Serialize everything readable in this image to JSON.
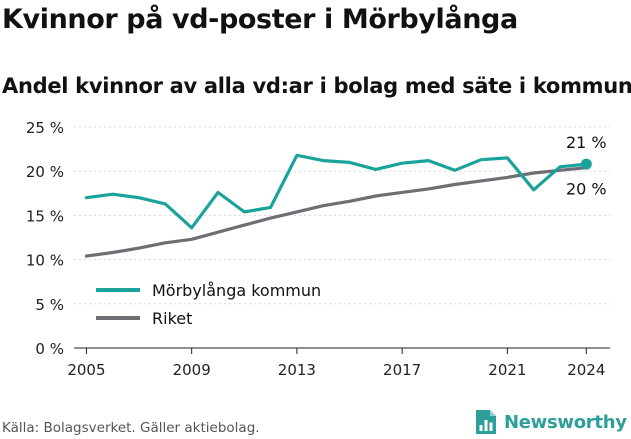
{
  "title": "Kvinnor på vd-poster i Mörbylånga",
  "subtitle": "Andel kvinnor av alla vd:ar i bolag med säte i kommunen",
  "source": "Källa: Bolagsverket. Gäller aktiebolag.",
  "brand": "Newsworthy",
  "colors": {
    "kommun": "#1aa39a",
    "riket": "#6f6e74",
    "grid": "#d7d7d7"
  },
  "icons": {
    "logo": "bar-chart-document-icon"
  },
  "chart_data": {
    "type": "line",
    "xlim": [
      2004.3,
      2024.9
    ],
    "ylim": [
      0,
      25
    ],
    "x_ticks": [
      2005,
      2009,
      2013,
      2017,
      2021,
      2024
    ],
    "y_ticks": [
      0,
      5,
      10,
      15,
      20,
      25
    ],
    "y_tick_labels": [
      "0 %",
      "5 %",
      "10 %",
      "15 %",
      "20 %",
      "25 %"
    ],
    "grid": "horizontal",
    "legend_position": "bottom-left",
    "series": [
      {
        "name": "Mörbylånga kommun",
        "x": [
          2005,
          2006,
          2007,
          2008,
          2009,
          2010,
          2011,
          2012,
          2013,
          2014,
          2015,
          2016,
          2017,
          2018,
          2019,
          2020,
          2021,
          2022,
          2023,
          2024
        ],
        "values": [
          17.0,
          17.4,
          17.0,
          16.3,
          13.6,
          17.6,
          15.4,
          15.9,
          21.8,
          21.2,
          21.0,
          20.2,
          20.9,
          21.2,
          20.1,
          21.3,
          21.5,
          17.9,
          20.5,
          20.8
        ],
        "end_label": "21 %"
      },
      {
        "name": "Riket",
        "x": [
          2005,
          2006,
          2007,
          2008,
          2009,
          2010,
          2011,
          2012,
          2013,
          2014,
          2015,
          2016,
          2017,
          2018,
          2019,
          2020,
          2021,
          2022,
          2023,
          2024
        ],
        "values": [
          10.4,
          10.8,
          11.3,
          11.9,
          12.3,
          13.1,
          13.9,
          14.7,
          15.4,
          16.1,
          16.6,
          17.2,
          17.6,
          18.0,
          18.5,
          18.9,
          19.3,
          19.8,
          20.1,
          20.4
        ],
        "end_label": "20 %"
      }
    ]
  }
}
